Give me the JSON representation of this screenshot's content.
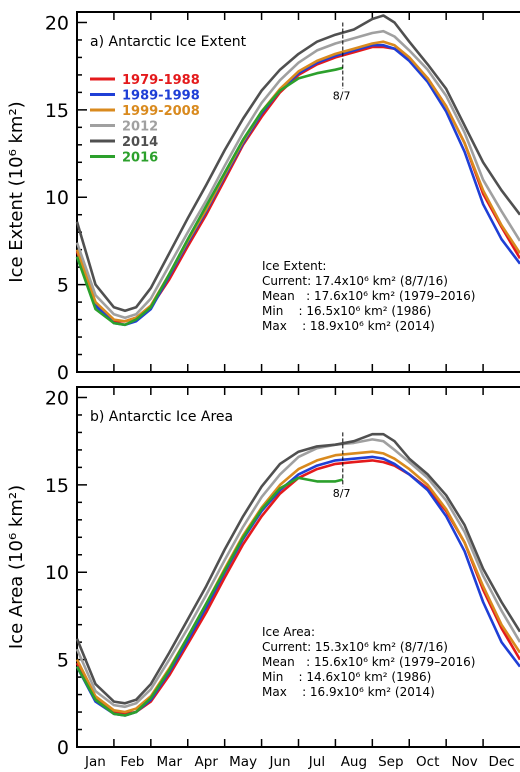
{
  "chart_data": [
    {
      "type": "line",
      "panel_label": "a) Antarctic Ice Extent",
      "title": "",
      "xlabel": "",
      "ylabel": "Ice Extent (10⁶ km²)",
      "xlim": [
        0,
        12
      ],
      "ylim": [
        0,
        20.6
      ],
      "y_ticks": [
        0,
        5,
        10,
        15,
        20
      ],
      "x_tick_labels": [
        "Jan",
        "Feb",
        "Mar",
        "Apr",
        "May",
        "Jun",
        "Jul",
        "Aug",
        "Sep",
        "Oct",
        "Nov",
        "Dec"
      ],
      "x_note": "month index, 0 = start of January",
      "grid": false,
      "legend": "top-left",
      "marker": {
        "x": 7.2,
        "label": "8/7"
      },
      "stats_title": "Ice Extent:",
      "stats": [
        "Current: 17.4x10⁶ km² (8/7/16)",
        "Mean   : 17.6x10⁶ km² (1979–2016)",
        "Min    : 16.5x10⁶ km² (1986)",
        "Max    : 18.9x10⁶ km² (2014)"
      ],
      "series": [
        {
          "name": "1979-1988",
          "color": "#e41a1c",
          "x": [
            0,
            0.5,
            1,
            1.3,
            1.6,
            2,
            2.5,
            3,
            3.5,
            4,
            4.5,
            5,
            5.5,
            6,
            6.5,
            7,
            7.5,
            8,
            8.3,
            8.6,
            9,
            9.5,
            10,
            10.5,
            11,
            11.5,
            12
          ],
          "values": [
            6.9,
            3.9,
            2.9,
            2.9,
            3.1,
            3.7,
            5.3,
            7.2,
            9.0,
            11.0,
            13.0,
            14.6,
            16.0,
            17.0,
            17.6,
            18.0,
            18.3,
            18.6,
            18.6,
            18.5,
            17.9,
            16.8,
            15.2,
            13.1,
            10.2,
            8.3,
            6.5
          ]
        },
        {
          "name": "1989-1998",
          "color": "#1f3fd6",
          "x": [
            0,
            0.5,
            1,
            1.3,
            1.6,
            2,
            2.5,
            3,
            3.5,
            4,
            4.5,
            5,
            5.5,
            6,
            6.5,
            7,
            7.5,
            8,
            8.3,
            8.6,
            9,
            9.5,
            10,
            10.5,
            11,
            11.5,
            12
          ],
          "values": [
            6.6,
            3.8,
            2.8,
            2.7,
            2.9,
            3.6,
            5.5,
            7.4,
            9.2,
            11.2,
            13.1,
            14.8,
            16.1,
            17.1,
            17.7,
            18.1,
            18.4,
            18.7,
            18.7,
            18.5,
            17.8,
            16.6,
            14.9,
            12.6,
            9.6,
            7.6,
            6.2
          ]
        },
        {
          "name": "1999-2008",
          "color": "#d98a1e",
          "x": [
            0,
            0.5,
            1,
            1.3,
            1.6,
            2,
            2.5,
            3,
            3.5,
            4,
            4.5,
            5,
            5.5,
            6,
            6.5,
            7,
            7.5,
            8,
            8.3,
            8.6,
            9,
            9.5,
            10,
            10.5,
            11,
            11.5,
            12
          ],
          "values": [
            7.0,
            4.0,
            3.0,
            2.9,
            3.1,
            3.8,
            5.6,
            7.5,
            9.3,
            11.3,
            13.2,
            14.9,
            16.2,
            17.2,
            17.8,
            18.2,
            18.5,
            18.8,
            18.9,
            18.7,
            18.0,
            16.8,
            15.2,
            13.1,
            10.4,
            8.4,
            6.8
          ]
        },
        {
          "name": "2012",
          "color": "#a0a0a0",
          "x": [
            0,
            0.5,
            1,
            1.3,
            1.6,
            2,
            2.5,
            3,
            3.5,
            4,
            4.5,
            5,
            5.5,
            6,
            6.5,
            7,
            7.5,
            8,
            8.3,
            8.6,
            9,
            9.5,
            10,
            10.5,
            11,
            11.5,
            12
          ],
          "values": [
            7.4,
            4.4,
            3.3,
            3.1,
            3.3,
            4.2,
            6.1,
            8.0,
            9.8,
            11.8,
            13.7,
            15.4,
            16.7,
            17.7,
            18.4,
            18.8,
            19.1,
            19.4,
            19.5,
            19.2,
            18.4,
            17.3,
            15.8,
            13.7,
            11.0,
            9.2,
            7.5
          ]
        },
        {
          "name": "2014",
          "color": "#505050",
          "x": [
            0,
            0.5,
            1,
            1.3,
            1.6,
            2,
            2.5,
            3,
            3.5,
            4,
            4.5,
            5,
            5.5,
            6,
            6.5,
            7,
            7.5,
            8,
            8.3,
            8.6,
            9,
            9.5,
            10,
            10.5,
            11,
            11.5,
            12
          ],
          "values": [
            8.6,
            5.0,
            3.7,
            3.5,
            3.7,
            4.8,
            6.8,
            8.8,
            10.7,
            12.7,
            14.5,
            16.1,
            17.3,
            18.2,
            18.9,
            19.3,
            19.6,
            20.2,
            20.4,
            20.0,
            18.9,
            17.6,
            16.2,
            14.1,
            12.0,
            10.4,
            9.0
          ]
        },
        {
          "name": "2016",
          "color": "#2ca02c",
          "x": [
            0,
            0.5,
            1,
            1.3,
            1.6,
            2,
            2.5,
            3,
            3.5,
            4,
            4.5,
            5,
            5.5,
            6,
            6.5,
            7,
            7.2
          ],
          "values": [
            6.6,
            3.6,
            2.8,
            2.7,
            3.0,
            3.7,
            5.6,
            7.6,
            9.5,
            11.4,
            13.3,
            14.9,
            16.1,
            16.8,
            17.1,
            17.3,
            17.4
          ]
        }
      ]
    },
    {
      "type": "line",
      "panel_label": "b) Antarctic Ice Area",
      "title": "",
      "xlabel": "",
      "ylabel": "Ice Area (10⁶ km²)",
      "xlim": [
        0,
        12
      ],
      "ylim": [
        0,
        20.6
      ],
      "y_ticks": [
        0,
        5,
        10,
        15,
        20
      ],
      "x_tick_labels": [
        "Jan",
        "Feb",
        "Mar",
        "Apr",
        "May",
        "Jun",
        "Jul",
        "Aug",
        "Sep",
        "Oct",
        "Nov",
        "Dec"
      ],
      "x_note": "month index, 0 = start of January",
      "grid": false,
      "legend": "none",
      "marker": {
        "x": 7.2,
        "label": "8/7"
      },
      "stats_title": "Ice Area:",
      "stats": [
        "Current: 15.3x10⁶ km² (8/7/16)",
        "Mean   : 15.6x10⁶ km² (1979–2016)",
        "Min    : 14.6x10⁶ km² (1986)",
        "Max    : 16.9x10⁶ km² (2014)"
      ],
      "series": [
        {
          "name": "1979-1988",
          "color": "#e41a1c",
          "x": [
            0,
            0.5,
            1,
            1.3,
            1.6,
            2,
            2.5,
            3,
            3.5,
            4,
            4.5,
            5,
            5.5,
            6,
            6.5,
            7,
            7.5,
            8,
            8.3,
            8.6,
            9,
            9.5,
            10,
            10.5,
            11,
            11.5,
            12
          ],
          "values": [
            4.8,
            2.8,
            2.0,
            1.9,
            2.0,
            2.6,
            4.1,
            5.9,
            7.7,
            9.7,
            11.6,
            13.2,
            14.5,
            15.4,
            15.9,
            16.2,
            16.3,
            16.4,
            16.3,
            16.1,
            15.6,
            14.8,
            13.5,
            11.7,
            9.0,
            6.8,
            5.0
          ]
        },
        {
          "name": "1989-1998",
          "color": "#1f3fd6",
          "x": [
            0,
            0.5,
            1,
            1.3,
            1.6,
            2,
            2.5,
            3,
            3.5,
            4,
            4.5,
            5,
            5.5,
            6,
            6.5,
            7,
            7.5,
            8,
            8.3,
            8.6,
            9,
            9.5,
            10,
            10.5,
            11,
            11.5,
            12
          ],
          "values": [
            4.6,
            2.6,
            1.9,
            1.8,
            2.0,
            2.7,
            4.3,
            6.1,
            8.0,
            10.0,
            11.9,
            13.5,
            14.7,
            15.6,
            16.1,
            16.4,
            16.5,
            16.6,
            16.5,
            16.2,
            15.6,
            14.7,
            13.2,
            11.2,
            8.3,
            6.0,
            4.6
          ]
        },
        {
          "name": "1999-2008",
          "color": "#d98a1e",
          "x": [
            0,
            0.5,
            1,
            1.3,
            1.6,
            2,
            2.5,
            3,
            3.5,
            4,
            4.5,
            5,
            5.5,
            6,
            6.5,
            7,
            7.5,
            8,
            8.3,
            8.6,
            9,
            9.5,
            10,
            10.5,
            11,
            11.5,
            12
          ],
          "values": [
            5.0,
            2.9,
            2.1,
            2.0,
            2.2,
            2.9,
            4.5,
            6.3,
            8.2,
            10.2,
            12.1,
            13.7,
            15.0,
            15.9,
            16.4,
            16.7,
            16.8,
            16.9,
            16.8,
            16.5,
            15.9,
            15.0,
            13.6,
            11.7,
            9.2,
            7.0,
            5.4
          ]
        },
        {
          "name": "2012",
          "color": "#a0a0a0",
          "x": [
            0,
            0.5,
            1,
            1.3,
            1.6,
            2,
            2.5,
            3,
            3.5,
            4,
            4.5,
            5,
            5.5,
            6,
            6.5,
            7,
            7.5,
            8,
            8.3,
            8.6,
            9,
            9.5,
            10,
            10.5,
            11,
            11.5,
            12
          ],
          "values": [
            5.6,
            3.2,
            2.4,
            2.3,
            2.5,
            3.3,
            5.0,
            6.8,
            8.7,
            10.7,
            12.6,
            14.3,
            15.6,
            16.6,
            17.1,
            17.3,
            17.4,
            17.6,
            17.5,
            17.0,
            16.3,
            15.4,
            14.1,
            12.3,
            9.8,
            7.8,
            6.0
          ]
        },
        {
          "name": "2014",
          "color": "#505050",
          "x": [
            0,
            0.5,
            1,
            1.3,
            1.6,
            2,
            2.5,
            3,
            3.5,
            4,
            4.5,
            5,
            5.5,
            6,
            6.5,
            7,
            7.5,
            8,
            8.3,
            8.6,
            9,
            9.5,
            10,
            10.5,
            11,
            11.5,
            12
          ],
          "values": [
            6.2,
            3.6,
            2.6,
            2.5,
            2.7,
            3.6,
            5.4,
            7.3,
            9.2,
            11.3,
            13.2,
            14.9,
            16.2,
            16.9,
            17.2,
            17.3,
            17.5,
            17.9,
            17.9,
            17.5,
            16.5,
            15.6,
            14.4,
            12.7,
            10.2,
            8.3,
            6.6
          ]
        },
        {
          "name": "2016",
          "color": "#2ca02c",
          "x": [
            0,
            0.5,
            1,
            1.3,
            1.6,
            2,
            2.5,
            3,
            3.5,
            4,
            4.5,
            5,
            5.5,
            6,
            6.5,
            7,
            7.2
          ],
          "values": [
            4.6,
            2.7,
            1.9,
            1.8,
            2.0,
            2.8,
            4.4,
            6.3,
            8.2,
            10.1,
            12.0,
            13.6,
            14.8,
            15.4,
            15.2,
            15.2,
            15.3
          ]
        }
      ]
    }
  ]
}
